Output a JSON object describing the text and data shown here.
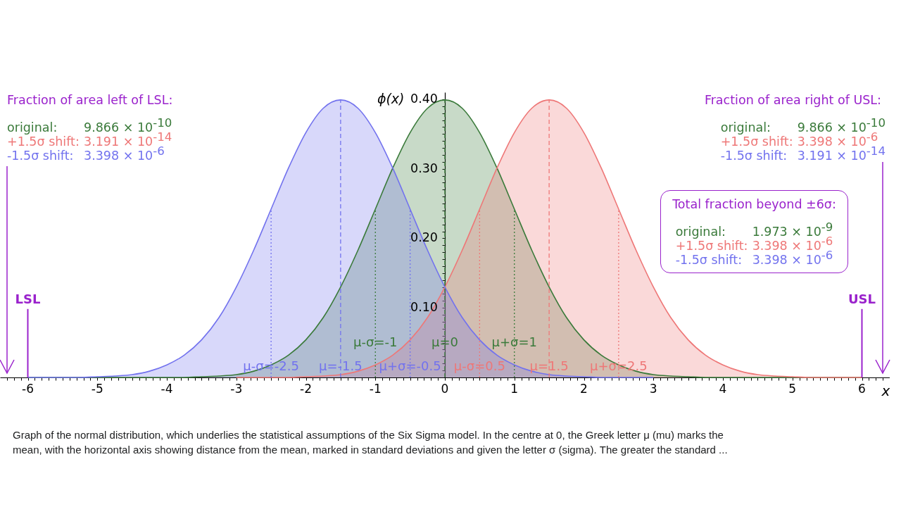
{
  "chart_data": {
    "type": "area",
    "x": [
      -6,
      -5.75,
      -5.5,
      -5.25,
      -5,
      -4.75,
      -4.5,
      -4.25,
      -4,
      -3.75,
      -3.5,
      -3.25,
      -3,
      -2.75,
      -2.5,
      -2.25,
      -2,
      -1.75,
      -1.5,
      -1.25,
      -1,
      -0.75,
      -0.5,
      -0.25,
      0,
      0.25,
      0.5,
      0.75,
      1,
      1.25,
      1.5,
      1.75,
      2,
      2.25,
      2.5,
      2.75,
      3,
      3.25,
      3.5,
      3.75,
      4,
      4.25,
      4.5,
      4.75,
      5,
      5.25,
      5.5,
      5.75,
      6
    ],
    "series": [
      {
        "color": "#3a7a3a",
        "values": [
          0,
          0,
          0,
          0,
          0,
          0,
          0,
          0,
          0,
          0,
          0.001,
          0.002,
          0.004,
          0.009,
          0.018,
          0.032,
          0.054,
          0.086,
          0.13,
          0.183,
          0.242,
          0.301,
          0.352,
          0.387,
          0.399,
          0.387,
          0.352,
          0.301,
          0.242,
          0.183,
          0.13,
          0.086,
          0.054,
          0.032,
          0.018,
          0.009,
          0.004,
          0.002,
          0.001,
          0,
          0,
          0,
          0,
          0,
          0,
          0,
          0,
          0,
          0
        ]
      },
      {
        "color": "#ee7777",
        "x": [
          -3,
          -2.75,
          -2.5,
          -2.25,
          -2,
          -1.75,
          -1.5,
          -1.25,
          -1,
          -0.75,
          -0.5,
          -0.25,
          0,
          0.25,
          0.5,
          0.75,
          1,
          1.25,
          1.5,
          1.75,
          2,
          2.25,
          2.5,
          2.75,
          3,
          3.25,
          3.5,
          3.75,
          4,
          4.25,
          4.5,
          4.75,
          5,
          5.25,
          5.5,
          5.75,
          6
        ],
        "values": [
          0,
          0,
          0,
          0,
          0.001,
          0.002,
          0.004,
          0.009,
          0.018,
          0.032,
          0.054,
          0.086,
          0.13,
          0.183,
          0.242,
          0.301,
          0.352,
          0.387,
          0.399,
          0.387,
          0.352,
          0.301,
          0.242,
          0.183,
          0.13,
          0.086,
          0.054,
          0.032,
          0.018,
          0.009,
          0.004,
          0.002,
          0.001,
          0,
          0,
          0,
          0
        ]
      },
      {
        "color": "#7272ee",
        "x": [
          -6,
          -5.75,
          -5.5,
          -5.25,
          -5,
          -4.75,
          -4.5,
          -4.25,
          -4,
          -3.75,
          -3.5,
          -3.25,
          -3,
          -2.75,
          -2.5,
          -2.25,
          -2,
          -1.75,
          -1.5,
          -1.25,
          -1,
          -0.75,
          -0.5,
          -0.25,
          0,
          0.25,
          0.5,
          0.75,
          1,
          1.25,
          1.5,
          1.75,
          2,
          2.25,
          2.5,
          2.75,
          3
        ],
        "values": [
          0,
          0,
          0,
          0,
          0.001,
          0.002,
          0.004,
          0.009,
          0.018,
          0.032,
          0.054,
          0.086,
          0.13,
          0.183,
          0.242,
          0.301,
          0.352,
          0.387,
          0.399,
          0.387,
          0.352,
          0.301,
          0.242,
          0.183,
          0.13,
          0.086,
          0.054,
          0.032,
          0.018,
          0.009,
          0.004,
          0.002,
          0.001,
          0,
          0,
          0,
          0
        ]
      }
    ],
    "xlabel": "x",
    "ylabel": "ϕ(x)",
    "xlim": [
      -6.4,
      6.4
    ],
    "ylim": [
      0,
      0.41
    ],
    "xticks": [
      {
        "value": -6.3,
        "label": null
      },
      {
        "value": -6.2,
        "label": null
      },
      {
        "value": -6.1,
        "label": null
      },
      -6,
      {
        "value": -5.9,
        "label": null
      },
      {
        "value": -5.8,
        "label": null
      },
      {
        "value": -5.7,
        "label": null
      },
      {
        "value": -5.6,
        "label": null
      },
      {
        "value": -5.5,
        "label": null
      },
      {
        "value": -5.4,
        "label": null
      },
      {
        "value": -5.3,
        "label": null
      },
      {
        "value": -5.2,
        "label": null
      },
      {
        "value": -5.1,
        "label": null
      },
      -5,
      {
        "value": -4.9,
        "label": null
      },
      {
        "value": -4.8,
        "label": null
      },
      {
        "value": -4.7,
        "label": null
      },
      {
        "value": -4.6,
        "label": null
      },
      {
        "value": -4.5,
        "label": null
      },
      {
        "value": -4.4,
        "label": null
      },
      {
        "value": -4.3,
        "label": null
      },
      {
        "value": -4.2,
        "label": null
      },
      {
        "value": -4.1,
        "label": null
      },
      -4,
      {
        "value": -3.9,
        "label": null
      },
      {
        "value": -3.8,
        "label": null
      },
      {
        "value": -3.7,
        "label": null
      },
      {
        "value": -3.6,
        "label": null
      },
      {
        "value": -3.5,
        "label": null
      },
      {
        "value": -3.4,
        "label": null
      },
      {
        "value": -3.3,
        "label": null
      },
      {
        "value": -3.2,
        "label": null
      },
      {
        "value": -3.1,
        "label": null
      },
      -3,
      {
        "value": -2.9,
        "label": null
      },
      {
        "value": -2.8,
        "label": null
      },
      {
        "value": -2.7,
        "label": null
      },
      {
        "value": -2.6,
        "label": null
      },
      {
        "value": -2.5,
        "label": null
      },
      {
        "value": -2.4,
        "label": null
      },
      {
        "value": -2.3,
        "label": null
      },
      {
        "value": -2.2,
        "label": null
      },
      {
        "value": -2.1,
        "label": null
      },
      -2,
      {
        "value": -1.9,
        "label": null
      },
      {
        "value": -1.8,
        "label": null
      },
      {
        "value": -1.7,
        "label": null
      },
      {
        "value": -1.6,
        "label": null
      },
      {
        "value": -1.5,
        "label": null
      },
      {
        "value": -1.4,
        "label": null
      },
      {
        "value": -1.3,
        "label": null
      },
      {
        "value": -1.2,
        "label": null
      },
      {
        "value": -1.1,
        "label": null
      },
      -1,
      {
        "value": -0.9,
        "label": null
      },
      {
        "value": -0.8,
        "label": null
      },
      {
        "value": -0.7,
        "label": null
      },
      {
        "value": -0.6,
        "label": null
      },
      {
        "value": -0.5,
        "label": null
      },
      {
        "value": -0.4,
        "label": null
      },
      {
        "value": -0.3,
        "label": null
      },
      {
        "value": -0.2,
        "label": null
      },
      {
        "value": -0.1,
        "label": null
      },
      0,
      {
        "value": 0.1,
        "label": null
      },
      {
        "value": 0.2,
        "label": null
      },
      {
        "value": 0.3,
        "label": null
      },
      {
        "value": 0.4,
        "label": null
      },
      {
        "value": 0.5,
        "label": null
      },
      {
        "value": 0.6,
        "label": null
      },
      {
        "value": 0.7,
        "label": null
      },
      {
        "value": 0.8,
        "label": null
      },
      {
        "value": 0.9,
        "label": null
      },
      1,
      {
        "value": 1.1,
        "label": null
      },
      {
        "value": 1.2,
        "label": null
      },
      {
        "value": 1.3,
        "label": null
      },
      {
        "value": 1.4,
        "label": null
      },
      {
        "value": 1.5,
        "label": null
      },
      {
        "value": 1.6,
        "label": null
      },
      {
        "value": 1.7,
        "label": null
      },
      {
        "value": 1.8,
        "label": null
      },
      {
        "value": 1.9,
        "label": null
      },
      2,
      {
        "value": 2.1,
        "label": null
      },
      {
        "value": 2.2,
        "label": null
      },
      {
        "value": 2.3,
        "label": null
      },
      {
        "value": 2.4,
        "label": null
      },
      {
        "value": 2.5,
        "label": null
      },
      {
        "value": 2.6,
        "label": null
      },
      {
        "value": 2.7,
        "label": null
      },
      {
        "value": 2.8,
        "label": null
      },
      {
        "value": 2.9,
        "label": null
      },
      3,
      {
        "value": 3.1,
        "label": null
      },
      {
        "value": 3.2,
        "label": null
      },
      {
        "value": 3.3,
        "label": null
      },
      {
        "value": 3.4,
        "label": null
      },
      {
        "value": 3.5,
        "label": null
      },
      {
        "value": 3.6,
        "label": null
      },
      {
        "value": 3.7,
        "label": null
      },
      {
        "value": 3.8,
        "label": null
      },
      {
        "value": 3.9,
        "label": null
      },
      4,
      {
        "value": 4.1,
        "label": null
      },
      {
        "value": 4.2,
        "label": null
      },
      {
        "value": 4.3,
        "label": null
      },
      {
        "value": 4.4,
        "label": null
      },
      {
        "value": 4.5,
        "label": null
      },
      {
        "value": 4.6,
        "label": null
      },
      {
        "value": 4.7,
        "label": null
      },
      {
        "value": 4.8,
        "label": null
      },
      {
        "value": 4.9,
        "label": null
      },
      5,
      {
        "value": 5.1,
        "label": null
      },
      {
        "value": 5.2,
        "label": null
      },
      {
        "value": 5.3,
        "label": null
      },
      {
        "value": 5.4,
        "label": null
      },
      {
        "value": 5.5,
        "label": null
      },
      {
        "value": 5.6,
        "label": null
      },
      {
        "value": 5.7,
        "label": null
      },
      {
        "value": 5.8,
        "label": null
      },
      {
        "value": 5.9,
        "label": null
      },
      6,
      {
        "value": 6.1,
        "label": null
      },
      {
        "value": 6.2,
        "label": null
      },
      {
        "value": 6.3,
        "label": null
      }
    ],
    "yticks": [
      {
        "value": 0.01,
        "label": null
      },
      {
        "value": 0.02,
        "label": null
      },
      {
        "value": 0.03,
        "label": null
      },
      {
        "value": 0.04,
        "label": null
      },
      {
        "value": 0.05,
        "label": null
      },
      {
        "value": 0.06,
        "label": null
      },
      {
        "value": 0.07,
        "label": null
      },
      {
        "value": 0.08,
        "label": null
      },
      {
        "value": 0.09,
        "label": null
      },
      {
        "value": 0.1,
        "label": "0.10"
      },
      {
        "value": 0.11,
        "label": null
      },
      {
        "value": 0.12,
        "label": null
      },
      {
        "value": 0.13,
        "label": null
      },
      {
        "value": 0.14,
        "label": null
      },
      {
        "value": 0.15,
        "label": null
      },
      {
        "value": 0.16,
        "label": null
      },
      {
        "value": 0.17,
        "label": null
      },
      {
        "value": 0.18,
        "label": null
      },
      {
        "value": 0.19,
        "label": null
      },
      {
        "value": 0.2,
        "label": "0.20"
      },
      {
        "value": 0.21,
        "label": null
      },
      {
        "value": 0.22,
        "label": null
      },
      {
        "value": 0.23,
        "label": null
      },
      {
        "value": 0.24,
        "label": null
      },
      {
        "value": 0.25,
        "label": null
      },
      {
        "value": 0.26,
        "label": null
      },
      {
        "value": 0.27,
        "label": null
      },
      {
        "value": 0.28,
        "label": null
      },
      {
        "value": 0.29,
        "label": null
      },
      {
        "value": 0.3,
        "label": "0.30"
      },
      {
        "value": 0.31,
        "label": null
      },
      {
        "value": 0.32,
        "label": null
      },
      {
        "value": 0.33,
        "label": null
      },
      {
        "value": 0.34,
        "label": null
      },
      {
        "value": 0.35,
        "label": null
      },
      {
        "value": 0.36,
        "label": null
      },
      {
        "value": 0.37,
        "label": null
      },
      {
        "value": 0.38,
        "label": null
      },
      {
        "value": 0.39,
        "label": null
      },
      {
        "value": 0.4,
        "label": "0.40"
      }
    ],
    "ref_lines": [
      {
        "axis": "x",
        "value": -2.5,
        "label": "μ-σ=-2.5",
        "color": "#7272ee",
        "line_style": "dotted"
      },
      {
        "axis": "x",
        "value": -1.5,
        "label": "μ=-1.5",
        "color": "#7272ee",
        "line_style": "dashed"
      },
      {
        "axis": "x",
        "value": -0.5,
        "label": "μ+σ=-0.5",
        "color": "#7272ee",
        "line_style": "dotted"
      },
      {
        "axis": "x",
        "value": 0.5,
        "label": "μ-σ=0.5",
        "color": "#ee7777",
        "line_style": "dotted"
      },
      {
        "axis": "x",
        "value": 1.5,
        "label": "μ=1.5",
        "color": "#ee7777",
        "line_style": "dashed"
      },
      {
        "axis": "x",
        "value": 2.5,
        "label": "μ+σ=2.5",
        "color": "#ee7777",
        "line_style": "dotted"
      },
      {
        "axis": "x",
        "value": -1,
        "label": "μ-σ=-1",
        "color": "#3a7a3a",
        "line_style": "dotted"
      },
      {
        "axis": "x",
        "value": 0,
        "label": "μ=0",
        "color": "#3a7a3a",
        "line_style": "dashed"
      },
      {
        "axis": "x",
        "value": 1,
        "label": "μ+σ=1",
        "color": "#3a7a3a",
        "line_style": "dotted"
      },
      {
        "axis": "x",
        "value": -6,
        "label": "LSL",
        "color": "#9a22cc",
        "line_style": "solid"
      },
      {
        "axis": "x",
        "value": 6,
        "label": "USL",
        "color": "#9a22cc",
        "line_style": "solid"
      }
    ],
    "annotations": [
      "Fraction of area left of LSL:",
      "original: 9.866 × 10$^{-10}$",
      "+1.5σ shift: 3.191 × 10$^{-14}$",
      "-1.5σ shift: 3.398 × 10$^{-6}$",
      "Fraction of area right of USL:",
      "original: 9.866 × 10$^{-10}$",
      "+1.5σ shift: 3.398 × 10$^{-6}$",
      "-1.5σ shift: 3.191 × 10$^{-14}$",
      "Total fraction beyond ±6σ:",
      "original: 1.973 × 10$^{-9}$",
      "+1.5σ shift: 3.398 × 10$^{-6}$",
      "-1.5σ shift: 3.398 × 10$^{-6}$",
      "Graph of the normal distribution, which underlies the statistical assumptions of the Six Sigma model. In the centre at 0, the Greek letter μ (mu) marks the mean, with the horizontal axis showing distance from the mean, marked in standard deviations and given the letter σ (sigma). The greater the standard ..."
    ]
  }
}
